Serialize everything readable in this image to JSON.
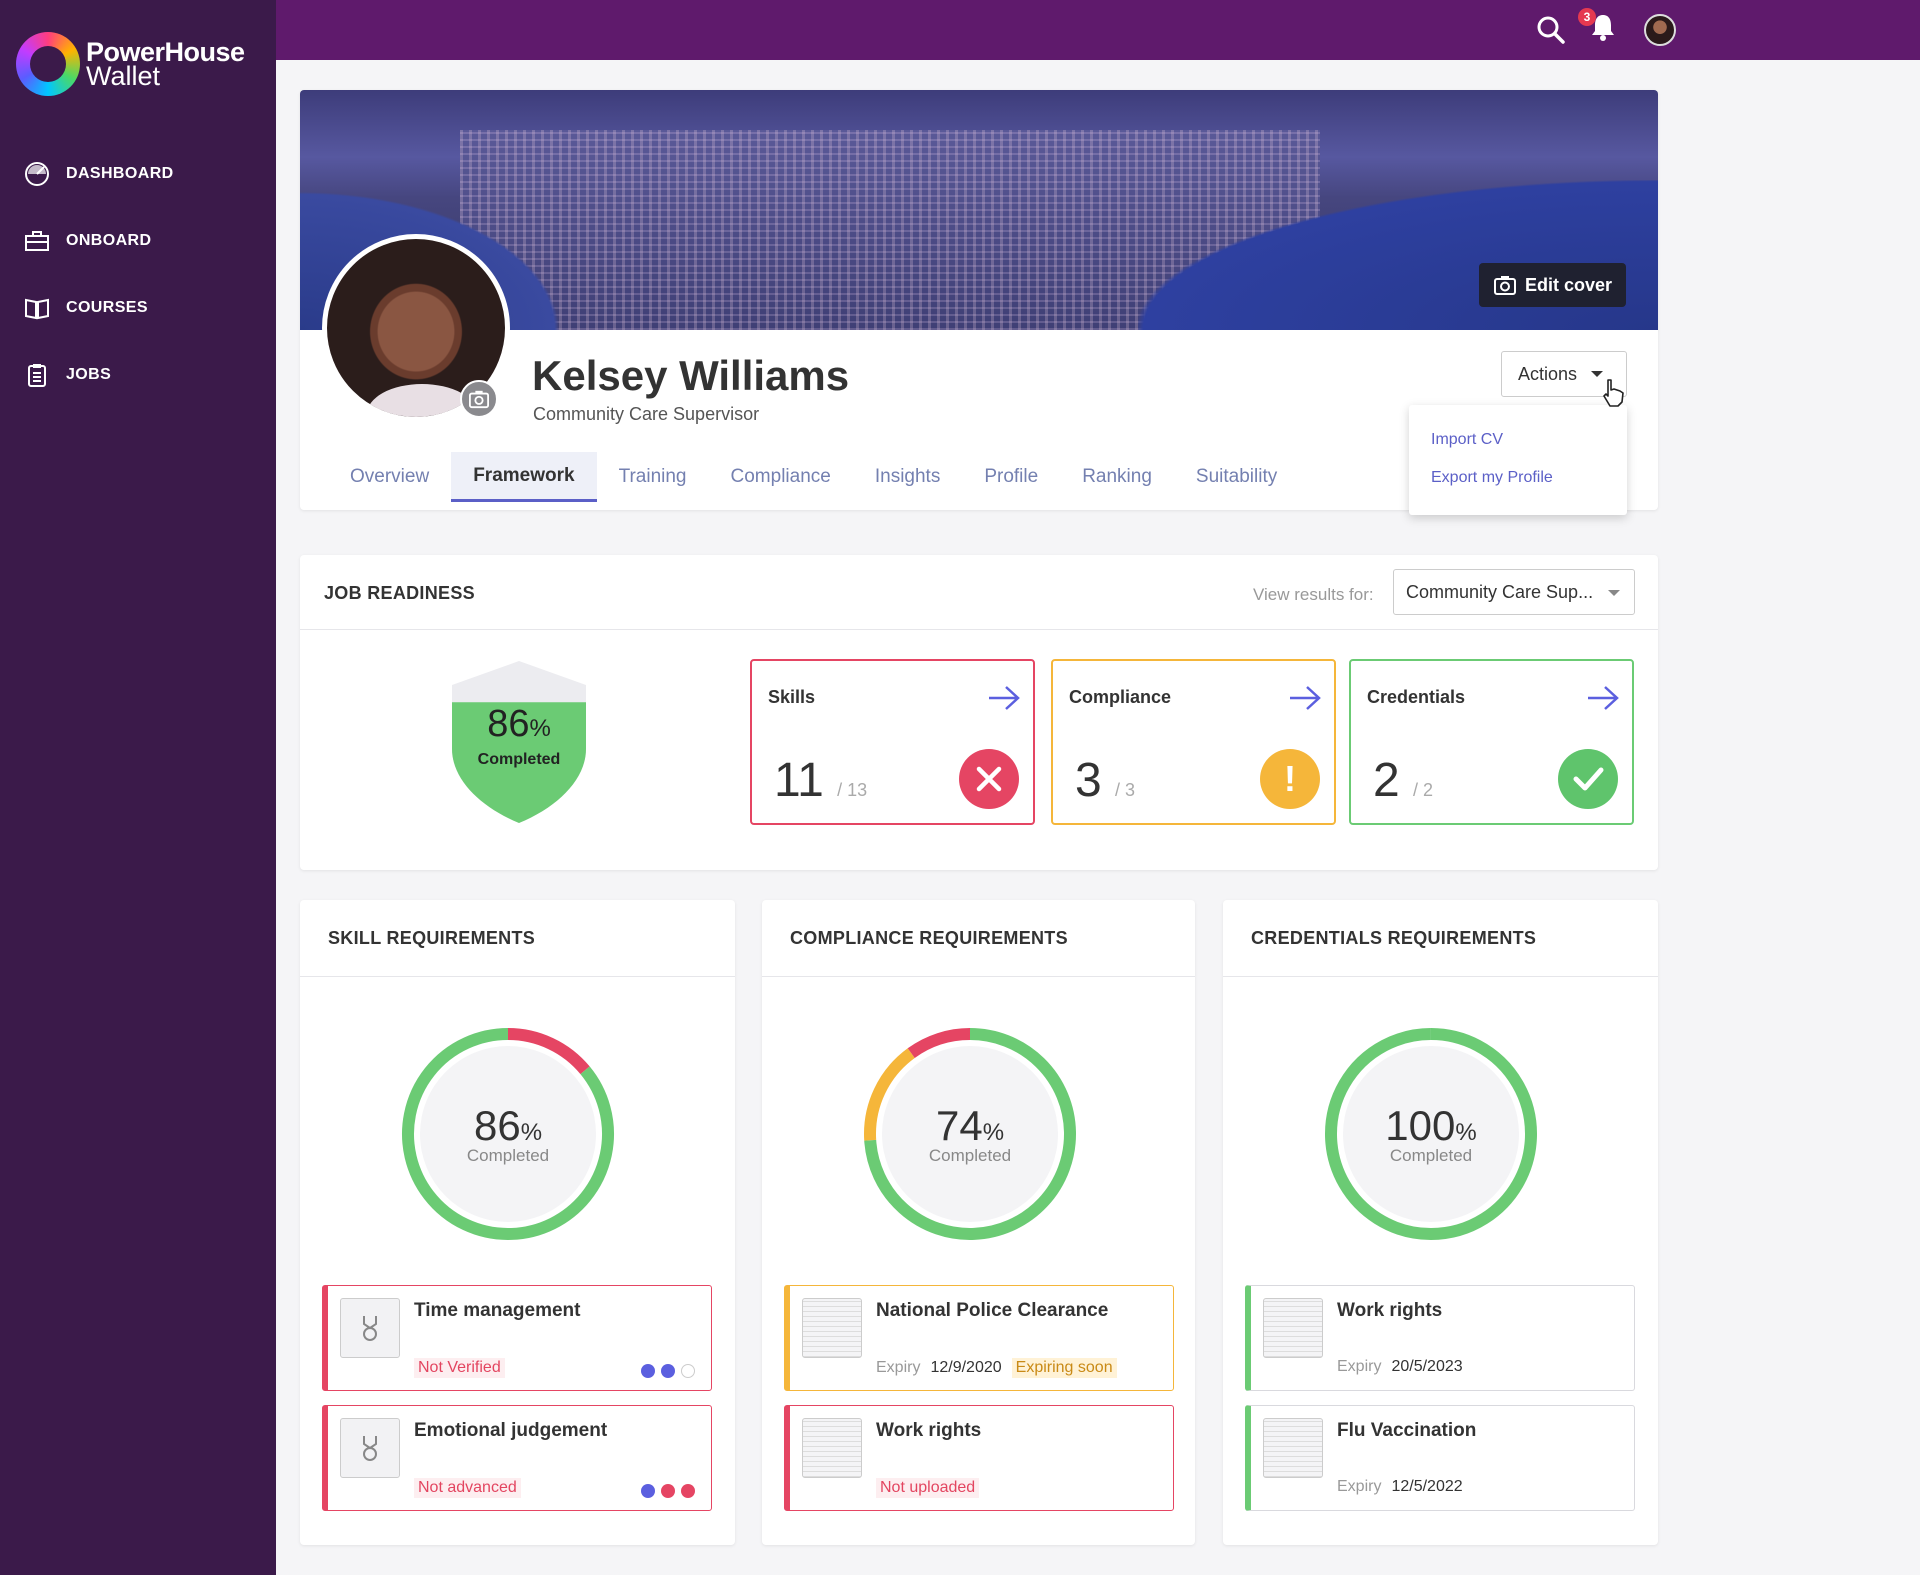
{
  "app": {
    "brand_line1": "PowerHouse",
    "brand_line2": "Wallet",
    "notification_count": "3"
  },
  "nav": [
    {
      "label": "DASHBOARD",
      "icon": "dashboard-icon"
    },
    {
      "label": "ONBOARD",
      "icon": "briefcase-icon"
    },
    {
      "label": "COURSES",
      "icon": "book-icon"
    },
    {
      "label": "JOBS",
      "icon": "clipboard-icon"
    }
  ],
  "profile": {
    "name": "Kelsey Williams",
    "role": "Community Care Supervisor",
    "edit_cover": "Edit cover",
    "actions_label": "Actions",
    "actions_menu": [
      "Import CV",
      "Export my Profile"
    ],
    "tabs": [
      "Overview",
      "Framework",
      "Training",
      "Compliance",
      "Insights",
      "Profile",
      "Ranking",
      "Suitability"
    ],
    "active_tab": "Framework"
  },
  "job_readiness": {
    "title": "JOB READINESS",
    "view_label": "View results for:",
    "view_value": "Community Care Sup...",
    "overall_pct": "86",
    "pct_sign": "%",
    "overall_sub": "Completed",
    "stats": [
      {
        "label": "Skills",
        "value": "11",
        "total": "/ 13",
        "status": "fail",
        "color": "#e54563"
      },
      {
        "label": "Compliance",
        "value": "3",
        "total": "/ 3",
        "status": "warning",
        "color": "#f5b63a"
      },
      {
        "label": "Credentials",
        "value": "2",
        "total": "/ 2",
        "status": "ok",
        "color": "#5fc46c"
      }
    ]
  },
  "requirements": [
    {
      "title": "SKILL REQUIREMENTS",
      "pct": "86",
      "sub": "Completed",
      "segments": [
        {
          "color": "#e54563",
          "fraction": 0.14
        },
        {
          "color": "#6bcb74",
          "fraction": 0.86
        }
      ],
      "items": [
        {
          "title": "Time management",
          "tag": "Not Verified",
          "dots": [
            "#5b5fdf",
            "#5b5fdf",
            "#ffffff"
          ]
        },
        {
          "title": "Emotional judgement",
          "tag": "Not advanced",
          "dots": [
            "#5b5fdf",
            "#e54563",
            "#e54563"
          ]
        }
      ]
    },
    {
      "title": "COMPLIANCE REQUIREMENTS",
      "pct": "74",
      "sub": "Completed",
      "segments": [
        {
          "color": "#6bcb74",
          "fraction": 0.74
        },
        {
          "color": "#f5b63a",
          "fraction": 0.16
        },
        {
          "color": "#e54563",
          "fraction": 0.1
        }
      ],
      "items": [
        {
          "title": "National Police Clearance",
          "expiry_label": "Expiry",
          "expiry": "12/9/2020",
          "tag": "Expiring soon"
        },
        {
          "title": "Work rights",
          "tag": "Not uploaded"
        }
      ]
    },
    {
      "title": "CREDENTIALS REQUIREMENTS",
      "pct": "100",
      "sub": "Completed",
      "segments": [
        {
          "color": "#6bcb74",
          "fraction": 1.0
        }
      ],
      "items": [
        {
          "title": "Work rights",
          "expiry_label": "Expiry",
          "expiry": "20/5/2023"
        },
        {
          "title": "Flu Vaccination",
          "expiry_label": "Expiry",
          "expiry": "12/5/2022"
        }
      ]
    }
  ],
  "colors": {
    "sidebar": "#3b1a4a",
    "topbar": "#5f1a6c",
    "accent": "#5b5fc7",
    "red": "#e54563",
    "orange": "#f5b63a",
    "green": "#5fc46c"
  }
}
